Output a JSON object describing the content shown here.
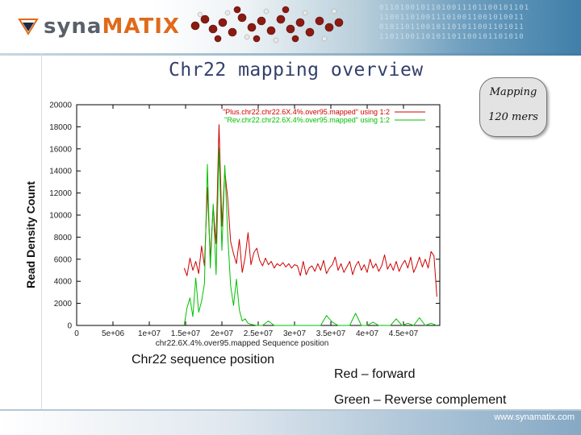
{
  "header": {
    "logo_text_a": "syna",
    "logo_text_b": "MATIX",
    "binary_rows": [
      "01101001011010011101100101101",
      "1100110100111010011001010011",
      "0101101100101101011001101011",
      "1101100110101101100101101010"
    ]
  },
  "slide": {
    "title": "Chr22 mapping overview",
    "badge_line1": "Mapping",
    "badge_line2": "120 mers",
    "ylabel": "Read Density Count",
    "xlabel": "Chr22 sequence position",
    "note_red": "Red – forward",
    "note_green": "Green – Reverse complement"
  },
  "footer": {
    "url": "www.synamatix.com"
  },
  "colors": {
    "forward": "#d00000",
    "reverse": "#00c000",
    "title": "#33406a",
    "logo_accent": "#e06a1a"
  },
  "chart_data": {
    "type": "line",
    "title": "",
    "xlabel": "chr22.6X.4%.over95.mapped Sequence position",
    "ylabel": "",
    "xlim": [
      0,
      50000000
    ],
    "ylim": [
      0,
      20000
    ],
    "xticks": [
      "0",
      "5e+06",
      "1e+07",
      "1.5e+07",
      "2e+07",
      "2.5e+07",
      "3e+07",
      "3.5e+07",
      "4e+07",
      "4.5e+07"
    ],
    "yticks": [
      "0",
      "2000",
      "4000",
      "6000",
      "8000",
      "10000",
      "12000",
      "14000",
      "16000",
      "18000",
      "20000"
    ],
    "legend_position": "top-right",
    "series": [
      {
        "name": "\"Plus.chr22.chr22.6X.4%.over95.mapped\" using 1:2",
        "color": "#d00000",
        "x": [
          14800000,
          15200000,
          15600000,
          16000000,
          16400000,
          16800000,
          17200000,
          17600000,
          18000000,
          18400000,
          18800000,
          19200000,
          19600000,
          20000000,
          20400000,
          20800000,
          21200000,
          21600000,
          22000000,
          22400000,
          22800000,
          23200000,
          23600000,
          24000000,
          24400000,
          24800000,
          25200000,
          25600000,
          26000000,
          26400000,
          26800000,
          27200000,
          27600000,
          28000000,
          28400000,
          28800000,
          29200000,
          29600000,
          30000000,
          30400000,
          30800000,
          31200000,
          31600000,
          32000000,
          32400000,
          32800000,
          33200000,
          33600000,
          34000000,
          34400000,
          34800000,
          35200000,
          35600000,
          36000000,
          36400000,
          36800000,
          37200000,
          37600000,
          38000000,
          38400000,
          38800000,
          39200000,
          39600000,
          40000000,
          40400000,
          40800000,
          41200000,
          41600000,
          42000000,
          42400000,
          42800000,
          43200000,
          43600000,
          44000000,
          44400000,
          44800000,
          45200000,
          45600000,
          46000000,
          46400000,
          46800000,
          47200000,
          47600000,
          48000000,
          48400000,
          48800000,
          49200000,
          49600000
        ],
        "y": [
          5200,
          4500,
          6100,
          5000,
          5800,
          4700,
          7200,
          5400,
          12500,
          6000,
          10800,
          7400,
          18200,
          9000,
          14000,
          11500,
          7600,
          6500,
          5600,
          7800,
          4800,
          6200,
          8400,
          5500,
          6600,
          7000,
          5900,
          5400,
          6100,
          5500,
          5800,
          5200,
          5600,
          5400,
          5700,
          5300,
          5600,
          5200,
          5500,
          5400,
          4500,
          5800,
          4600,
          5200,
          5400,
          4900,
          5600,
          5000,
          5900,
          4700,
          5200,
          5500,
          6200,
          5000,
          5600,
          4800,
          5300,
          5800,
          4600,
          5400,
          5800,
          5000,
          5500,
          4800,
          6000,
          5200,
          5600,
          4900,
          5400,
          6400,
          5100,
          5600,
          5000,
          5800,
          4900,
          5500,
          5900,
          5200,
          6200,
          4800,
          5400,
          6200,
          5300,
          6000,
          5200,
          6700,
          6300,
          2600
        ]
      },
      {
        "name": "\"Rev.chr22.chr22.6X.4%.over95.mapped\" using 1:2",
        "color": "#00c000",
        "x": [
          14800000,
          15200000,
          15600000,
          16000000,
          16400000,
          16800000,
          17200000,
          17600000,
          18000000,
          18400000,
          18800000,
          19200000,
          19600000,
          20000000,
          20400000,
          20800000,
          21200000,
          21600000,
          22000000,
          22400000,
          22800000,
          23200000,
          23600000,
          24000000,
          24800000,
          25600000,
          26400000,
          27200000,
          28000000,
          28800000,
          29600000,
          30400000,
          31200000,
          32000000,
          32800000,
          33600000,
          34400000,
          35200000,
          36000000,
          36800000,
          37600000,
          38400000,
          39200000,
          40000000,
          40800000,
          41600000,
          42400000,
          43200000,
          44000000,
          44800000,
          45600000,
          46400000,
          47200000,
          48000000,
          48800000,
          49600000
        ],
        "y": [
          0,
          1600,
          2500,
          800,
          4300,
          1200,
          2200,
          3800,
          14600,
          5200,
          11000,
          4600,
          16100,
          6800,
          14500,
          8200,
          3600,
          1800,
          4200,
          1400,
          400,
          600,
          200,
          100,
          0,
          0,
          400,
          0,
          0,
          0,
          0,
          0,
          0,
          0,
          0,
          0,
          900,
          300,
          0,
          0,
          0,
          1100,
          0,
          0,
          300,
          0,
          0,
          0,
          600,
          0,
          200,
          0,
          700,
          0,
          200,
          0
        ]
      }
    ]
  }
}
